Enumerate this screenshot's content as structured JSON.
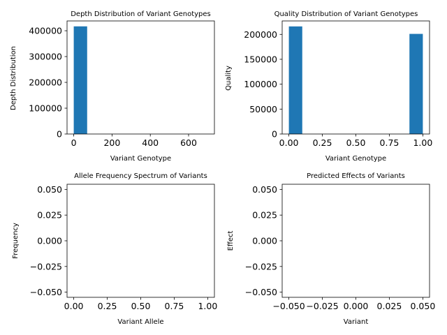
{
  "chart_data": [
    {
      "type": "bar",
      "title": "Depth Distribution of Variant Genotypes",
      "xlabel": "Variant Genotype",
      "ylabel": "Depth Distribution",
      "xlim": [
        -35,
        735
      ],
      "ylim": [
        0,
        438000
      ],
      "xticks": [
        {
          "v": 0,
          "label": "0"
        },
        {
          "v": 200,
          "label": "200"
        },
        {
          "v": 400,
          "label": "400"
        },
        {
          "v": 600,
          "label": "600"
        }
      ],
      "yticks": [
        {
          "v": 0,
          "label": "0"
        },
        {
          "v": 100000,
          "label": "100000"
        },
        {
          "v": 200000,
          "label": "200000"
        },
        {
          "v": 300000,
          "label": "300000"
        },
        {
          "v": 400000,
          "label": "400000"
        }
      ],
      "bins": [
        {
          "x0": 0,
          "x1": 70,
          "value": 417000
        },
        {
          "x0": 70,
          "x1": 140,
          "value": 0
        },
        {
          "x0": 140,
          "x1": 210,
          "value": 0
        },
        {
          "x0": 210,
          "x1": 280,
          "value": 0
        },
        {
          "x0": 280,
          "x1": 350,
          "value": 0
        },
        {
          "x0": 350,
          "x1": 420,
          "value": 0
        },
        {
          "x0": 420,
          "x1": 490,
          "value": 0
        },
        {
          "x0": 490,
          "x1": 560,
          "value": 0
        },
        {
          "x0": 560,
          "x1": 630,
          "value": 0
        },
        {
          "x0": 630,
          "x1": 700,
          "value": 0
        }
      ],
      "color": "#1f77b4"
    },
    {
      "type": "bar",
      "title": "Quality Distribution of Variant Genotypes",
      "xlabel": "Variant Genotype",
      "ylabel": "Quality",
      "xlim": [
        -0.05,
        1.05
      ],
      "ylim": [
        0,
        227000
      ],
      "xticks": [
        {
          "v": 0,
          "label": "0.00"
        },
        {
          "v": 0.25,
          "label": "0.25"
        },
        {
          "v": 0.5,
          "label": "0.50"
        },
        {
          "v": 0.75,
          "label": "0.75"
        },
        {
          "v": 1,
          "label": "1.00"
        }
      ],
      "yticks": [
        {
          "v": 0,
          "label": "0"
        },
        {
          "v": 50000,
          "label": "50000"
        },
        {
          "v": 100000,
          "label": "100000"
        },
        {
          "v": 150000,
          "label": "150000"
        },
        {
          "v": 200000,
          "label": "200000"
        }
      ],
      "bins": [
        {
          "x0": 0,
          "x1": 0.1,
          "value": 216000
        },
        {
          "x0": 0.1,
          "x1": 0.2,
          "value": 0
        },
        {
          "x0": 0.2,
          "x1": 0.3,
          "value": 0
        },
        {
          "x0": 0.3,
          "x1": 0.4,
          "value": 0
        },
        {
          "x0": 0.4,
          "x1": 0.5,
          "value": 0
        },
        {
          "x0": 0.5,
          "x1": 0.6,
          "value": 0
        },
        {
          "x0": 0.6,
          "x1": 0.7,
          "value": 0
        },
        {
          "x0": 0.7,
          "x1": 0.8,
          "value": 0
        },
        {
          "x0": 0.8,
          "x1": 0.9,
          "value": 0
        },
        {
          "x0": 0.9,
          "x1": 1.0,
          "value": 201000
        }
      ],
      "color": "#1f77b4"
    },
    {
      "type": "bar",
      "title": "Allele Frequency Spectrum of Variants",
      "xlabel": "Variant Allele",
      "ylabel": "Frequency",
      "xlim": [
        -0.05,
        1.05
      ],
      "ylim": [
        -0.055,
        0.055
      ],
      "xticks": [
        {
          "v": 0,
          "label": "0.00"
        },
        {
          "v": 0.25,
          "label": "0.25"
        },
        {
          "v": 0.5,
          "label": "0.50"
        },
        {
          "v": 0.75,
          "label": "0.75"
        },
        {
          "v": 1,
          "label": "1.00"
        }
      ],
      "yticks": [
        {
          "v": -0.05,
          "label": "−0.050"
        },
        {
          "v": -0.025,
          "label": "−0.025"
        },
        {
          "v": 0,
          "label": "0.000"
        },
        {
          "v": 0.025,
          "label": "0.025"
        },
        {
          "v": 0.05,
          "label": "0.050"
        }
      ],
      "bins": [],
      "color": "#1f77b4"
    },
    {
      "type": "bar",
      "title": "Predicted Effects of Variants",
      "xlabel": "Variant",
      "ylabel": "Effect",
      "xlim": [
        -0.055,
        0.055
      ],
      "ylim": [
        -0.055,
        0.055
      ],
      "xticks": [
        {
          "v": -0.05,
          "label": "−0.050"
        },
        {
          "v": -0.025,
          "label": "−0.025"
        },
        {
          "v": 0,
          "label": "0.000"
        },
        {
          "v": 0.025,
          "label": "0.025"
        },
        {
          "v": 0.05,
          "label": "0.050"
        }
      ],
      "yticks": [
        {
          "v": -0.05,
          "label": "−0.050"
        },
        {
          "v": -0.025,
          "label": "−0.025"
        },
        {
          "v": 0,
          "label": "0.000"
        },
        {
          "v": 0.025,
          "label": "0.025"
        },
        {
          "v": 0.05,
          "label": "0.050"
        }
      ],
      "bins": [],
      "color": "#1f77b4"
    }
  ]
}
